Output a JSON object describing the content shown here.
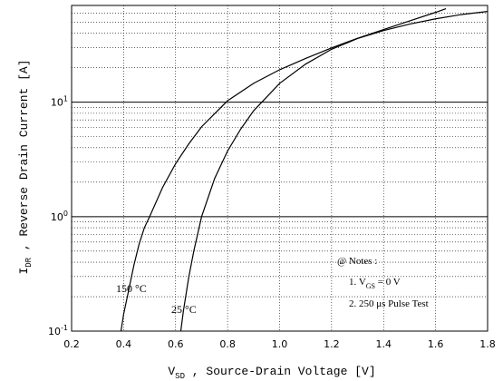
{
  "chart_data": {
    "type": "line",
    "x_label": {
      "symbol": "V",
      "subscript": "SD",
      "text": " , Source-Drain Voltage   [V]"
    },
    "y_label": {
      "symbol": "I",
      "subscript": "DR",
      "text": " , Reverse Drain Current   [A]"
    },
    "xlim": [
      0.2,
      1.8
    ],
    "ylim": [
      0.1,
      70
    ],
    "y_scale": "log",
    "grid": true,
    "x_ticks": [
      "0.2",
      "0.4",
      "0.6",
      "0.8",
      "1.0",
      "1.2",
      "1.4",
      "1.6",
      "1.8"
    ],
    "y_ticks": [
      {
        "base": "10",
        "exp": "-1"
      },
      {
        "base": "10",
        "exp": "0"
      },
      {
        "base": "10",
        "exp": "1"
      }
    ],
    "series": [
      {
        "label_value": "150",
        "label_unit": "°C",
        "points": [
          [
            0.39,
            0.1
          ],
          [
            0.4,
            0.14
          ],
          [
            0.42,
            0.23
          ],
          [
            0.44,
            0.38
          ],
          [
            0.46,
            0.58
          ],
          [
            0.48,
            0.8
          ],
          [
            0.5,
            1.0
          ],
          [
            0.55,
            1.8
          ],
          [
            0.6,
            2.9
          ],
          [
            0.65,
            4.3
          ],
          [
            0.7,
            6.1
          ],
          [
            0.8,
            10.3
          ],
          [
            0.9,
            14.6
          ],
          [
            1.0,
            19.2
          ],
          [
            1.1,
            24.1
          ],
          [
            1.2,
            29.8
          ],
          [
            1.3,
            36.2
          ],
          [
            1.4,
            43.1
          ],
          [
            1.5,
            51.3
          ],
          [
            1.6,
            60.9
          ],
          [
            1.64,
            65.6
          ]
        ]
      },
      {
        "label_value": "25",
        "label_unit": "°C",
        "points": [
          [
            0.62,
            0.1
          ],
          [
            0.63,
            0.15
          ],
          [
            0.65,
            0.29
          ],
          [
            0.67,
            0.5
          ],
          [
            0.7,
            1.0
          ],
          [
            0.75,
            2.15
          ],
          [
            0.8,
            3.75
          ],
          [
            0.85,
            5.8
          ],
          [
            0.9,
            8.4
          ],
          [
            1.0,
            14.6
          ],
          [
            1.1,
            21.5
          ],
          [
            1.2,
            29.0
          ],
          [
            1.3,
            36.0
          ],
          [
            1.4,
            42.2
          ],
          [
            1.5,
            48.1
          ],
          [
            1.6,
            53.5
          ],
          [
            1.7,
            58.3
          ],
          [
            1.8,
            62.0
          ]
        ]
      }
    ],
    "notes": {
      "title": "@ Notes :",
      "items": [
        {
          "prefix": "1.  ",
          "symbol": "V",
          "subscript": "GS",
          "text": " = 0 V"
        },
        {
          "prefix": "2.  ",
          "symbol": "",
          "subscript": "",
          "text": "250 μs Pulse Test"
        }
      ]
    }
  }
}
